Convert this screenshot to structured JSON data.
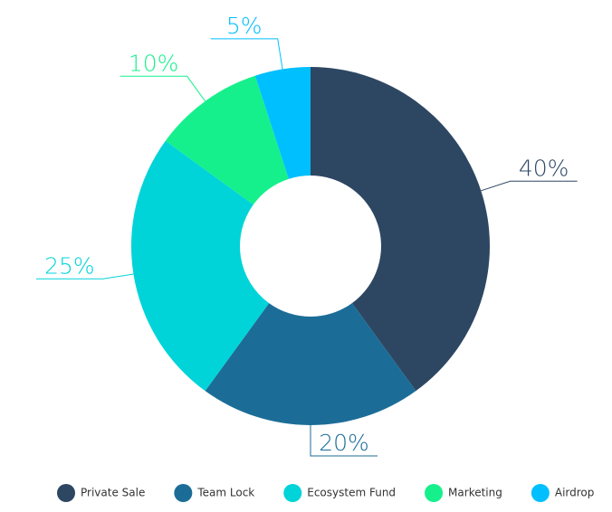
{
  "chart_data": {
    "type": "donut",
    "categories": [
      "Private Sale",
      "Team Lock",
      "Ecosystem Fund",
      "Marketing",
      "Airdrop"
    ],
    "values": [
      40,
      20,
      25,
      10,
      5
    ],
    "value_labels": [
      "40%",
      "20%",
      "25%",
      "10%",
      "5%"
    ],
    "colors": [
      "#2d4763",
      "#1b6d97",
      "#00d4d8",
      "#16f08c",
      "#00bfff"
    ],
    "legend": "bottom"
  }
}
